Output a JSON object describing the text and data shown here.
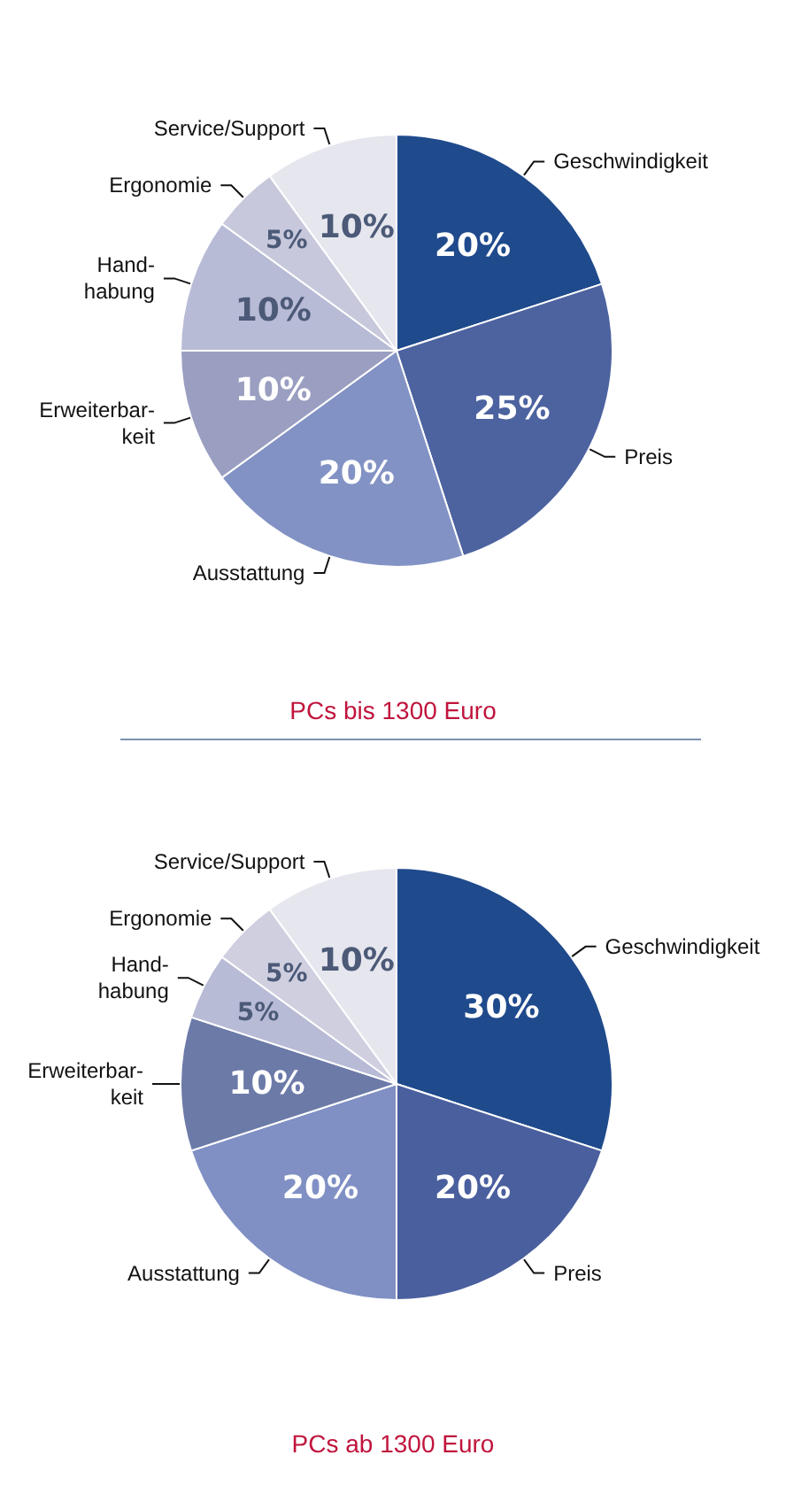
{
  "chart_data": [
    {
      "type": "pie",
      "title": "PCs bis 1300 Euro",
      "categories": [
        "Geschwindigkeit",
        "Preis",
        "Ausstattung",
        "Erweiterbar-\nkeit",
        "Hand-\nhabung",
        "Ergonomie",
        "Service/Support"
      ],
      "values": [
        20,
        25,
        20,
        10,
        10,
        5,
        10
      ],
      "value_labels": [
        "20%",
        "25%",
        "20%",
        "10%",
        "10%",
        "5%",
        "10%"
      ],
      "colors": [
        "#1f4a8c",
        "#4d63a0",
        "#8292c4",
        "#9a9ec0",
        "#b8bbd6",
        "#c8c8dc",
        "#e6e6ef"
      ]
    },
    {
      "type": "pie",
      "title": "PCs ab 1300 Euro",
      "categories": [
        "Geschwindigkeit",
        "Preis",
        "Ausstattung",
        "Erweiterbar-\nkeit",
        "Hand-\nhabung",
        "Ergonomie",
        "Service/Support"
      ],
      "values": [
        30,
        20,
        20,
        10,
        5,
        5,
        10
      ],
      "value_labels": [
        "30%",
        "20%",
        "20%",
        "10%",
        "5%",
        "5%",
        "10%"
      ],
      "colors": [
        "#1f4a8c",
        "#4a5f9e",
        "#8090c4",
        "#6c7aa8",
        "#b8bbd6",
        "#cfcfe0",
        "#e6e6ef"
      ]
    }
  ]
}
